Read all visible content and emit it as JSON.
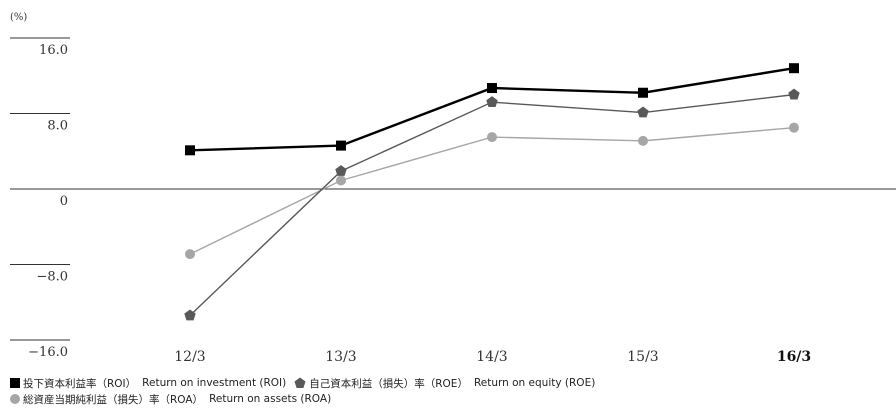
{
  "chart_data": {
    "type": "line",
    "unit_label": "(%)",
    "categories": [
      "12/3",
      "13/3",
      "14/3",
      "15/3",
      "16/3"
    ],
    "highlight_category": "16/3",
    "y_ticks": [
      "16.0",
      "8.0",
      "0",
      "−8.0",
      "−16.0"
    ],
    "ylim": [
      -16,
      16
    ],
    "series": [
      {
        "name": "投下資本利益率（ROI） Return on investment (ROI)",
        "values": [
          4.1,
          4.6,
          10.7,
          10.2,
          12.8
        ],
        "color": "#000000",
        "marker": "square"
      },
      {
        "name": "自己資本利益（損失）率（ROE） Return on equity (ROE)",
        "values": [
          -13.4,
          1.9,
          9.2,
          8.1,
          10.0
        ],
        "color": "#595959",
        "marker": "pentagon"
      },
      {
        "name": "総資産当期純利益（損失）率（ROA） Return on assets (ROA)",
        "values": [
          -6.9,
          0.9,
          5.5,
          5.1,
          6.5
        ],
        "color": "#a6a6a6",
        "marker": "circle"
      }
    ]
  },
  "legend": {
    "roi": {
      "jp": "投下資本利益率（ROI）",
      "en": "Return on investment (ROI)"
    },
    "roe": {
      "jp": "自己資本利益（損失）率（ROE）",
      "en": "Return on equity (ROE)"
    },
    "roa": {
      "jp": "総資産当期純利益（損失）率（ROA）",
      "en": "Return on assets (ROA)"
    }
  }
}
